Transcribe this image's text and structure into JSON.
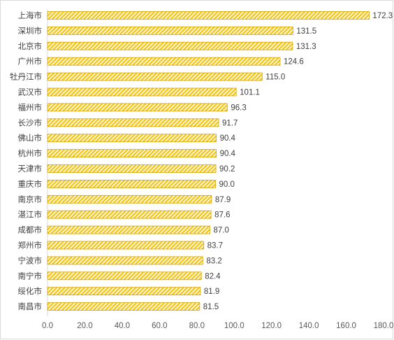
{
  "chart_data": {
    "type": "bar",
    "orientation": "horizontal",
    "categories": [
      "上海市",
      "深圳市",
      "北京市",
      "广州市",
      "牡丹江市",
      "武汉市",
      "福州市",
      "长沙市",
      "佛山市",
      "杭州市",
      "天津市",
      "重庆市",
      "南京市",
      "湛江市",
      "成都市",
      "郑州市",
      "宁波市",
      "南宁市",
      "绥化市",
      "南昌市"
    ],
    "values": [
      172.3,
      131.5,
      131.3,
      124.6,
      115.0,
      101.1,
      96.3,
      91.7,
      90.4,
      90.4,
      90.2,
      90.0,
      87.9,
      87.6,
      87.0,
      83.7,
      83.2,
      82.4,
      81.9,
      81.5
    ],
    "value_labels": [
      "172.3",
      "131.5",
      "131.3",
      "124.6",
      "115.0",
      "101.1",
      "96.3",
      "91.7",
      "90.4",
      "90.4",
      "90.2",
      "90.0",
      "87.9",
      "87.6",
      "87.0",
      "83.7",
      "83.2",
      "82.4",
      "81.9",
      "81.5"
    ],
    "x_ticks": [
      "0.0",
      "20.0",
      "40.0",
      "60.0",
      "80.0",
      "100.0",
      "120.0",
      "140.0",
      "160.0",
      "180.0"
    ],
    "xlim": [
      0,
      180
    ],
    "title": "",
    "xlabel": "",
    "ylabel": "",
    "grid": false,
    "legend": "none",
    "bar_color": "#f5c518",
    "bar_pattern": "diagonal-hatch",
    "hatch_color": "#ffffff",
    "axis_color": "#d9d9d9"
  }
}
